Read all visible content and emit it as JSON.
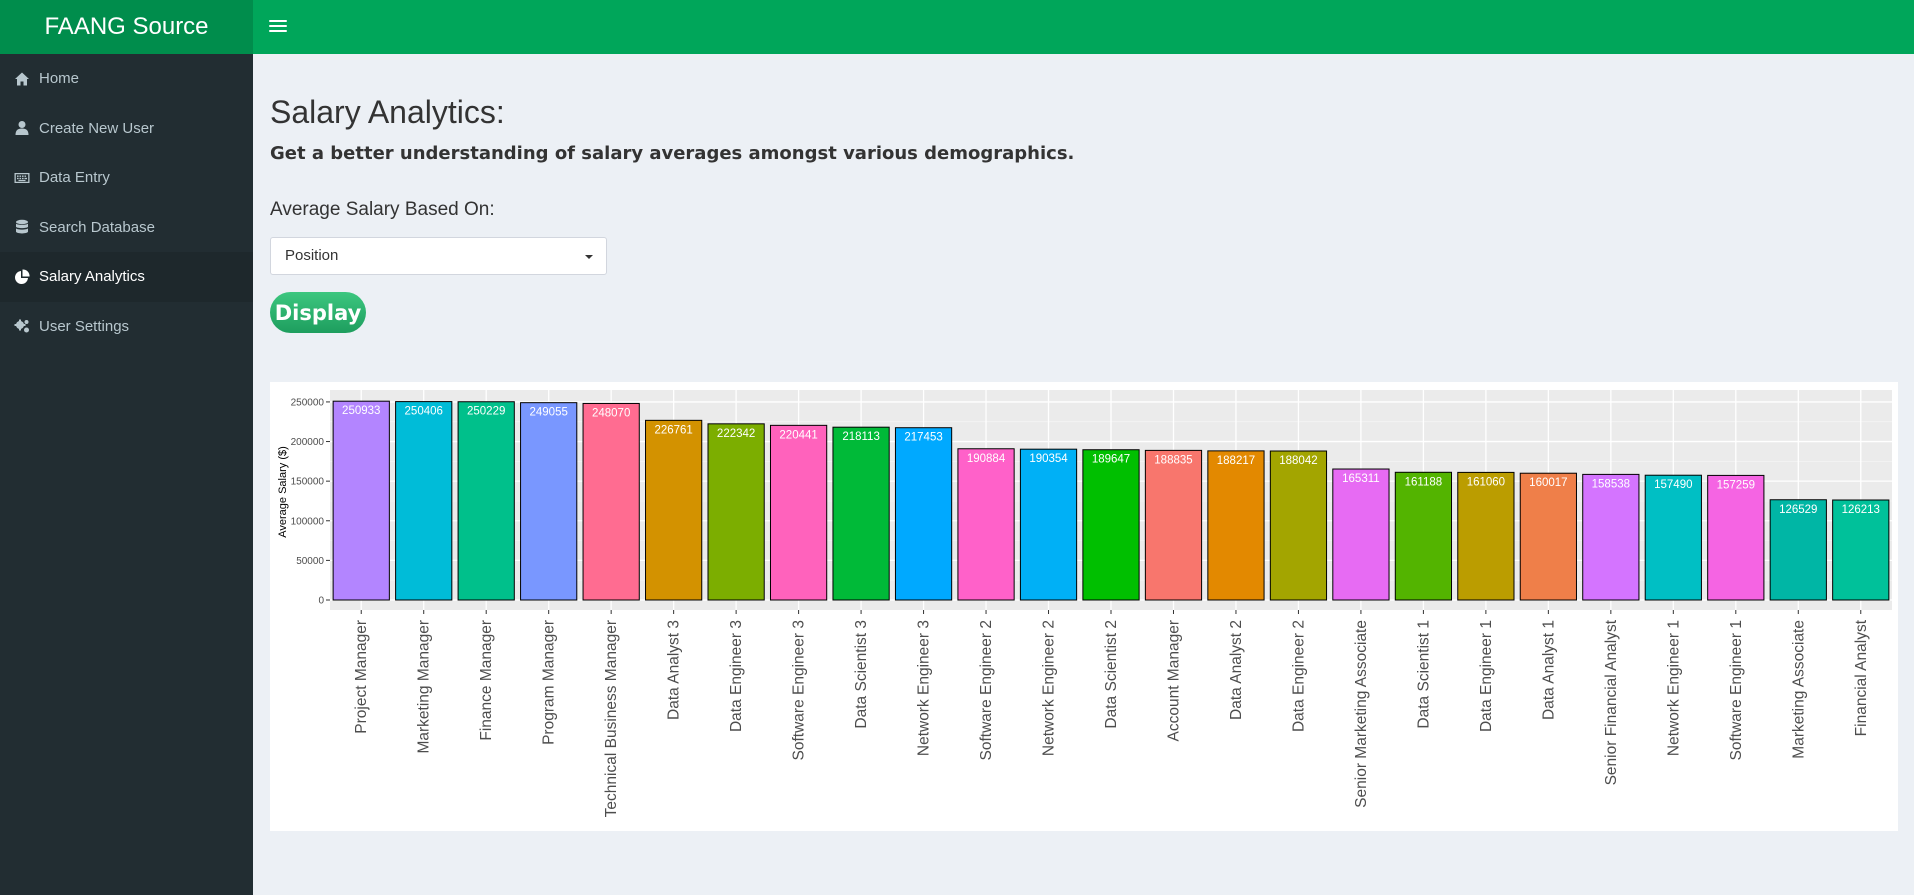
{
  "app": {
    "brand": "FAANG Source"
  },
  "topbar": {
    "menu_icon": "hamburger-icon"
  },
  "sidebar": {
    "items": [
      {
        "label": "Home",
        "icon": "home-icon",
        "active": false
      },
      {
        "label": "Create New User",
        "icon": "user-icon",
        "active": false
      },
      {
        "label": "Data Entry",
        "icon": "keyboard-icon",
        "active": false
      },
      {
        "label": "Search Database",
        "icon": "database-icon",
        "active": false
      },
      {
        "label": "Salary Analytics",
        "icon": "pie-chart-icon",
        "active": true
      },
      {
        "label": "User Settings",
        "icon": "gears-icon",
        "active": false
      }
    ]
  },
  "main": {
    "title": "Salary Analytics:",
    "subtitle": "Get a better understanding of salary averages amongst various demographics.",
    "select_label": "Average Salary Based On:",
    "select_value": "Position",
    "display_button": "Display"
  },
  "chart_data": {
    "type": "bar",
    "title": "",
    "xlabel": "",
    "ylabel": "Average Salary ($)",
    "ylim": [
      0,
      260000
    ],
    "yticks": [
      0,
      50000,
      100000,
      150000,
      200000,
      250000
    ],
    "grid": true,
    "categories": [
      "Project Manager",
      "Marketing Manager",
      "Finance Manager",
      "Program Manager",
      "Technical Business Manager",
      "Data Analyst 3",
      "Data Engineer 3",
      "Software Engineer 3",
      "Data Scientist 3",
      "Network Engineer 3",
      "Software Engineer 2",
      "Network Engineer 2",
      "Data Scientist 2",
      "Account Manager",
      "Data Analyst 2",
      "Data Engineer 2",
      "Senior Marketing Associate",
      "Data Scientist 1",
      "Data Engineer 1",
      "Data Analyst 1",
      "Senior Financial Analyst",
      "Network Engineer 1",
      "Software Engineer 1",
      "Marketing Associate",
      "Financial Analyst"
    ],
    "values": [
      250933,
      250406,
      250229,
      249055,
      248070,
      226761,
      222342,
      220441,
      218113,
      217453,
      190884,
      190354,
      189647,
      188835,
      188217,
      188042,
      165311,
      161188,
      161060,
      160017,
      158538,
      157490,
      157259,
      126529,
      126213
    ],
    "colors": [
      "#B385FF",
      "#00BCD8",
      "#00C08B",
      "#7997FF",
      "#FF6C91",
      "#D39200",
      "#7CAE00",
      "#FF62BC",
      "#00BA38",
      "#00A9FF",
      "#FF61C9",
      "#00B0F6",
      "#00BF00",
      "#F8766D",
      "#E38900",
      "#A3A500",
      "#E76BF3",
      "#53B400",
      "#BB9D00",
      "#EF7F49",
      "#D474FF",
      "#00BFC4",
      "#F564E3",
      "#00B6A5",
      "#00C19A"
    ],
    "bar_labels_on_bars": true
  }
}
